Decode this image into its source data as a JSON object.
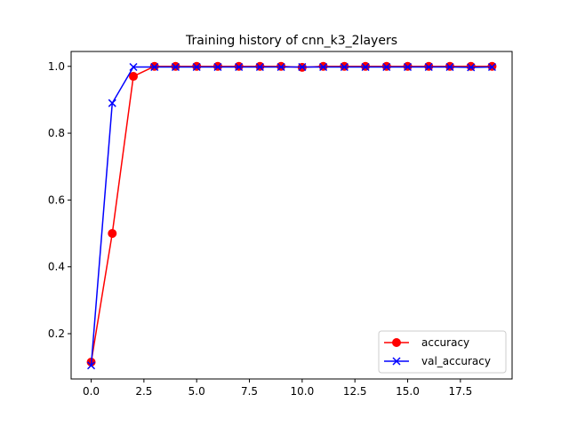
{
  "chart_data": {
    "type": "line",
    "title": "Training history of cnn_k3_2layers",
    "xlabel": "",
    "ylabel": "",
    "xlim": [
      -0.95,
      19.95
    ],
    "ylim": [
      0.0645,
      1.0445
    ],
    "xticks": [
      0.0,
      2.5,
      5.0,
      7.5,
      10.0,
      12.5,
      15.0,
      17.5
    ],
    "xtick_labels": [
      "0.0",
      "2.5",
      "5.0",
      "7.5",
      "10.0",
      "12.5",
      "15.0",
      "17.5"
    ],
    "yticks": [
      0.2,
      0.4,
      0.6,
      0.8,
      1.0
    ],
    "ytick_labels": [
      "0.2",
      "0.4",
      "0.6",
      "0.8",
      "1.0"
    ],
    "grid": false,
    "legend_position": "lower-right",
    "x": [
      0,
      1,
      2,
      3,
      4,
      5,
      6,
      7,
      8,
      9,
      10,
      11,
      12,
      13,
      14,
      15,
      16,
      17,
      18,
      19
    ],
    "series": [
      {
        "name": "accuracy",
        "color": "#ff0000",
        "marker": "circle",
        "values": [
          0.115,
          0.5,
          0.97,
          1.0,
          1.0,
          1.0,
          1.0,
          1.0,
          1.0,
          1.0,
          0.997,
          1.0,
          1.0,
          1.0,
          1.0,
          1.0,
          1.0,
          1.0,
          1.0,
          1.0
        ]
      },
      {
        "name": "val_accuracy",
        "color": "#0000ff",
        "marker": "x",
        "values": [
          0.105,
          0.89,
          0.998,
          0.998,
          0.998,
          0.998,
          0.998,
          0.998,
          0.998,
          0.998,
          0.998,
          0.998,
          0.998,
          0.998,
          0.998,
          0.998,
          0.998,
          0.998,
          0.997,
          0.998
        ]
      }
    ]
  }
}
